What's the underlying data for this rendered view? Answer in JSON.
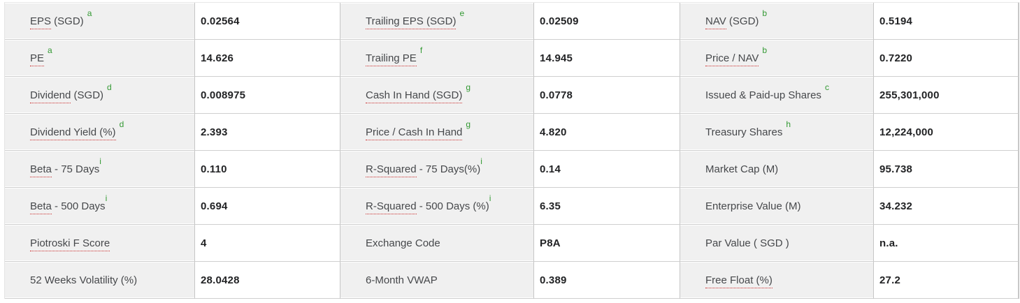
{
  "colors": {
    "label_cell_background": "#f0f0f0",
    "value_cell_background": "#ffffff",
    "footnote_green": "#339933",
    "tooltip_underline_red": "#cb2a2a",
    "label_text": "#46484b",
    "value_text": "#222325",
    "grid_border": "#c6c6c6"
  },
  "factsheet": {
    "rows": [
      [
        {
          "label_u": "EPS",
          "label_rest": " (SGD)",
          "sup": "a",
          "sup_attached": false,
          "value": "0.02564"
        },
        {
          "label_u": "Trailing EPS (SGD)",
          "label_rest": "",
          "sup": "e",
          "sup_attached": false,
          "value": "0.02509"
        },
        {
          "label_u": "NAV",
          "label_rest": " (SGD)",
          "sup": "b",
          "sup_attached": false,
          "value": "0.5194"
        }
      ],
      [
        {
          "label_u": "PE",
          "label_rest": "",
          "sup": "a",
          "sup_attached": false,
          "value": "14.626"
        },
        {
          "label_u": "Trailing PE",
          "label_rest": "",
          "sup": "f",
          "sup_attached": false,
          "value": "14.945"
        },
        {
          "label_u": "Price / NAV",
          "label_rest": "",
          "sup": "b",
          "sup_attached": false,
          "value": "0.7220"
        }
      ],
      [
        {
          "label_u": "Dividend",
          "label_rest": " (SGD)",
          "sup": "d",
          "sup_attached": false,
          "value": "0.008975"
        },
        {
          "label_u": "Cash In Hand (SGD)",
          "label_rest": "",
          "sup": "g",
          "sup_attached": false,
          "value": "0.0778"
        },
        {
          "label_u": "",
          "label_rest": "Issued & Paid-up Shares",
          "sup": "c",
          "sup_attached": false,
          "value": "255,301,000"
        }
      ],
      [
        {
          "label_u": "Dividend Yield (%)",
          "label_rest": "",
          "sup": "d",
          "sup_attached": false,
          "value": "2.393"
        },
        {
          "label_u": "Price / Cash In Hand",
          "label_rest": "",
          "sup": "g",
          "sup_attached": false,
          "value": "4.820"
        },
        {
          "label_u": "",
          "label_rest": "Treasury Shares",
          "sup": "h",
          "sup_attached": false,
          "value": "12,224,000"
        }
      ],
      [
        {
          "label_u": "Beta",
          "label_rest": " - 75 Days",
          "sup": "i",
          "sup_attached": true,
          "value": "0.110"
        },
        {
          "label_u": "R-Squared",
          "label_rest": " - 75 Days(%)",
          "sup": "i",
          "sup_attached": true,
          "value": "0.14"
        },
        {
          "label_u": "",
          "label_rest": "Market Cap (M)",
          "sup": "",
          "sup_attached": false,
          "value": "95.738"
        }
      ],
      [
        {
          "label_u": "Beta",
          "label_rest": " - 500 Days",
          "sup": "i",
          "sup_attached": true,
          "value": "0.694"
        },
        {
          "label_u": "R-Squared",
          "label_rest": " - 500 Days (%)",
          "sup": "i",
          "sup_attached": true,
          "value": "6.35"
        },
        {
          "label_u": "",
          "label_rest": "Enterprise Value (M)",
          "sup": "",
          "sup_attached": false,
          "value": "34.232"
        }
      ],
      [
        {
          "label_u": "Piotroski F Score",
          "label_rest": "",
          "sup": "",
          "sup_attached": false,
          "value": "4"
        },
        {
          "label_u": "",
          "label_rest": "Exchange Code",
          "sup": "",
          "sup_attached": false,
          "value": "P8A"
        },
        {
          "label_u": "",
          "label_rest": "Par Value ( SGD )",
          "sup": "",
          "sup_attached": false,
          "value": "n.a."
        }
      ],
      [
        {
          "label_u": "",
          "label_rest": "52 Weeks Volatility (%)",
          "sup": "",
          "sup_attached": false,
          "value": "28.0428"
        },
        {
          "label_u": "",
          "label_rest": "6-Month VWAP",
          "sup": "",
          "sup_attached": false,
          "value": "0.389"
        },
        {
          "label_u": "Free Float (%)",
          "label_rest": "",
          "sup": "",
          "sup_attached": false,
          "value": "27.2"
        }
      ]
    ]
  }
}
